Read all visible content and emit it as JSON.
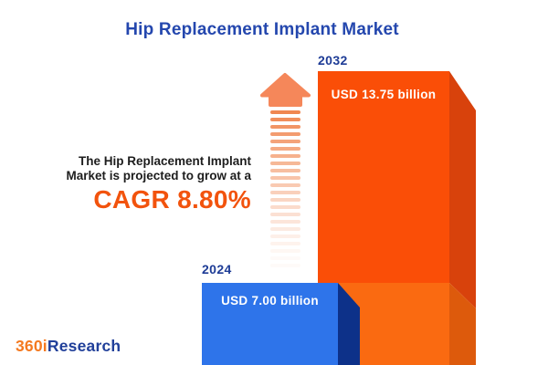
{
  "header": {
    "title": "Hip Replacement Implant Market"
  },
  "description": {
    "line1": "The Hip Replacement Implant",
    "line2": "Market is projected to grow at a",
    "cagr_text": "CAGR 8.80%"
  },
  "chart_data": {
    "type": "bar",
    "title": "Hip Replacement Implant Market",
    "categories": [
      "2024",
      "2032"
    ],
    "values": [
      7.0,
      13.75
    ],
    "value_labels": [
      "USD 7.00 billion",
      "USD 13.75 billion"
    ],
    "unit": "USD billion",
    "cagr_percent": 8.8,
    "annotation": "The Hip Replacement Implant Market is projected to grow at a CAGR 8.80%",
    "legend": "none",
    "axes": "none (pictorial 3D column infographic, bars anchored to bottom edge)"
  },
  "icons": {
    "growth_arrow": "upward-fading-striped-arrow"
  },
  "logo": {
    "part1": "360i",
    "part2": "Research"
  },
  "colors": {
    "title_blue": "#2447AE",
    "year_label_navy": "#1E3C96",
    "cagr_orange": "#F2530D",
    "bar_2024_front": "#2E74EA",
    "bar_2024_side": "#0D3189",
    "bar_2032_front_upper": "#FA4E07",
    "bar_2032_front_lower": "#FA6A11",
    "bar_2032_side_upper": "#D8420C",
    "bar_2032_side_lower": "#DD5A0C",
    "arrow_head": "#F5875A",
    "arrow_stripe": "#F0834B",
    "logo_orange": "#F47A21",
    "logo_navy": "#21409A",
    "value_label_text": "#ffffff",
    "background": "#ffffff"
  }
}
